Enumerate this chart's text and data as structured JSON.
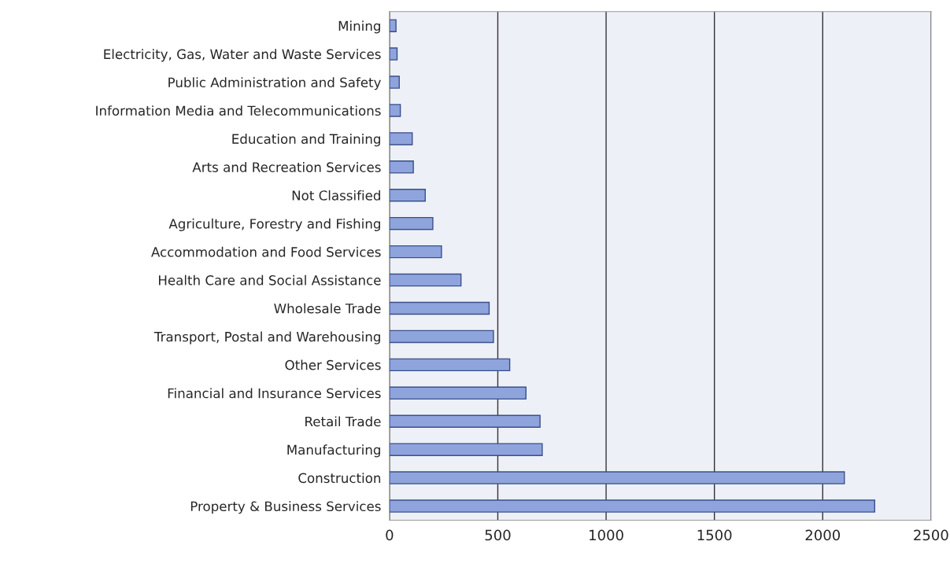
{
  "chart_data": {
    "type": "bar",
    "orientation": "horizontal",
    "categories": [
      "Mining",
      "Electricity, Gas, Water and Waste Services",
      "Public Administration and Safety",
      "Information Media and Telecommunications",
      "Education and Training",
      "Arts and Recreation Services",
      "Not Classified",
      "Agriculture, Forestry and Fishing",
      "Accommodation and Food Services",
      "Health Care and Social Assistance",
      "Wholesale Trade",
      "Transport, Postal and Warehousing",
      "Other Services",
      "Financial and Insurance Services",
      "Retail Trade",
      "Manufacturing",
      "Construction",
      "Property & Business Services"
    ],
    "values": [
      30,
      35,
      45,
      50,
      105,
      110,
      165,
      200,
      240,
      330,
      460,
      480,
      555,
      630,
      695,
      705,
      2100,
      2240
    ],
    "color": "#8fa4dc",
    "xlim": [
      0,
      2500
    ],
    "xticks": [
      0,
      500,
      1000,
      1500,
      2000,
      2500
    ],
    "grid": "x"
  }
}
